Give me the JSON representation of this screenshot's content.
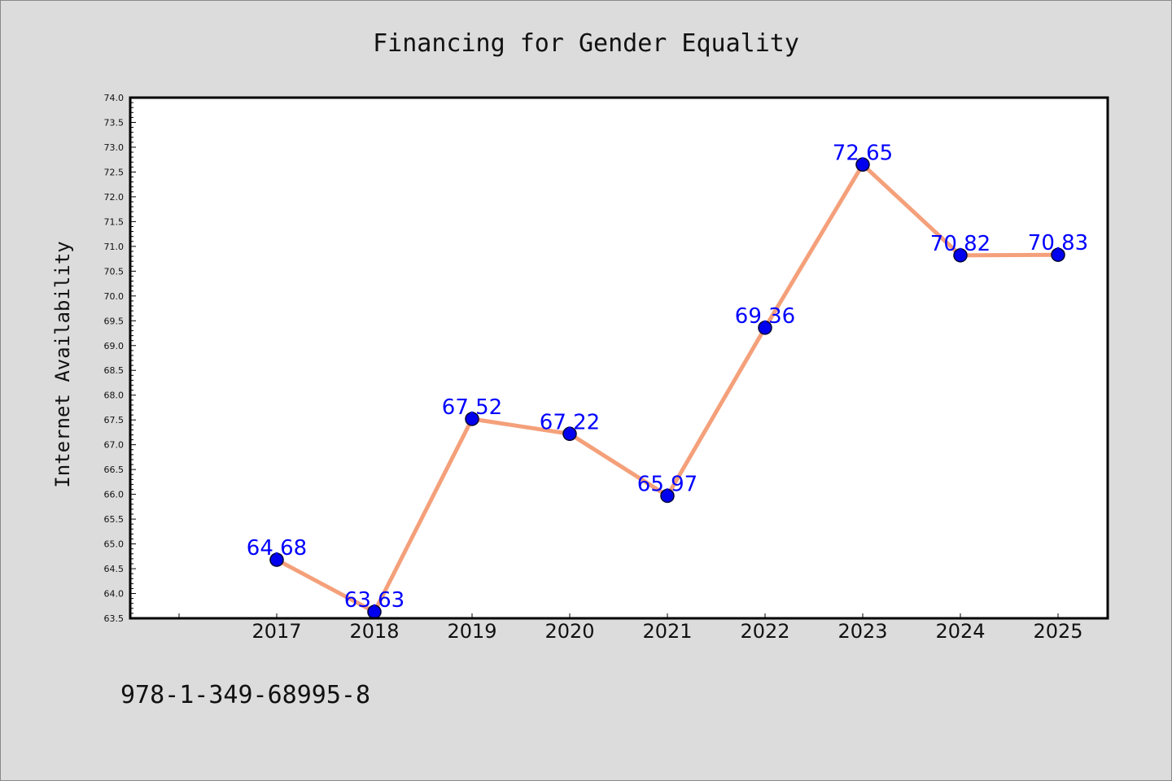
{
  "chart_data": {
    "type": "line",
    "title": "Financing for Gender Equality",
    "xlabel": "",
    "ylabel": "Internet Availability",
    "categories": [
      "2017",
      "2018",
      "2019",
      "2020",
      "2021",
      "2022",
      "2023",
      "2024",
      "2025"
    ],
    "series": [
      {
        "values": [
          64.68,
          63.63,
          67.52,
          67.22,
          65.97,
          69.36,
          72.65,
          70.82,
          70.83
        ],
        "labels": [
          "64.68",
          "63.63",
          "67.52",
          "67.22",
          "65.97",
          "69.36",
          "72.65",
          "70.82",
          "70.83"
        ]
      }
    ],
    "ylim": [
      63.5,
      74.0
    ],
    "yticks": [
      "63.5",
      "64.0",
      "64.5",
      "65.0",
      "65.5",
      "66.0",
      "66.5",
      "67.0",
      "67.5",
      "68.0",
      "68.5",
      "69.0",
      "69.5",
      "70.0",
      "70.5",
      "71.0",
      "71.5",
      "72.0",
      "72.5",
      "73.0",
      "73.5",
      "74.0"
    ],
    "grid": false,
    "legend": "none",
    "colors": {
      "background": "#dcdcdc",
      "plot_background": "#ffffff",
      "line": "#f4a07a",
      "marker_fill": "#0000ee",
      "marker_edge": "#000033",
      "data_label": "#0000ff",
      "axis": "#000000"
    }
  },
  "footer": {
    "isbn": "978-1-349-68995-8"
  }
}
